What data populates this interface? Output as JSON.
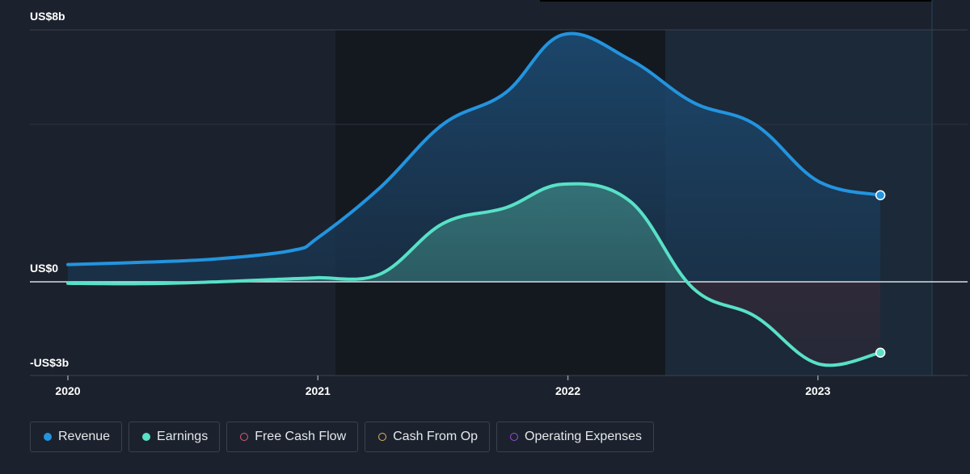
{
  "chart_data": {
    "type": "area",
    "y_tick_labels": [
      "US$8b",
      "US$0",
      "-US$3b"
    ],
    "ylim": [
      -3,
      8
    ],
    "x_tick_labels": [
      "2020",
      "2021",
      "2022",
      "2023"
    ],
    "xlim": [
      2020.0,
      2023.45
    ],
    "series": [
      {
        "name": "Revenue",
        "color": "#2394df",
        "x": [
          2020.0,
          2020.3,
          2020.6,
          2020.9,
          2021.0,
          2021.25,
          2021.5,
          2021.75,
          2021.98,
          2022.25,
          2022.5,
          2022.75,
          2023.0,
          2023.25
        ],
        "values": [
          0.55,
          0.62,
          0.73,
          1.0,
          1.4,
          3.0,
          5.0,
          6.0,
          7.85,
          7.05,
          5.7,
          4.99,
          3.2,
          2.75
        ]
      },
      {
        "name": "Earnings",
        "color": "#58e1c7",
        "x": [
          2020.0,
          2020.3,
          2020.6,
          2020.9,
          2021.0,
          2021.25,
          2021.5,
          2021.75,
          2021.98,
          2022.25,
          2022.5,
          2022.75,
          2023.0,
          2023.25
        ],
        "values": [
          -0.05,
          -0.06,
          0.0,
          0.1,
          0.13,
          0.25,
          1.85,
          2.35,
          3.1,
          2.55,
          -0.2,
          -1.1,
          -2.6,
          -2.25
        ]
      }
    ],
    "legend": [
      {
        "label": "Revenue",
        "color": "#2394df",
        "filled": true
      },
      {
        "label": "Earnings",
        "color": "#58e1c7",
        "filled": true
      },
      {
        "label": "Free Cash Flow",
        "color": "#e0587c",
        "filled": false
      },
      {
        "label": "Cash From Op",
        "color": "#e6b35a",
        "filled": false
      },
      {
        "label": "Operating Expenses",
        "color": "#9b4de0",
        "filled": false
      }
    ],
    "legend_position": "bottom-left",
    "grid": true
  }
}
